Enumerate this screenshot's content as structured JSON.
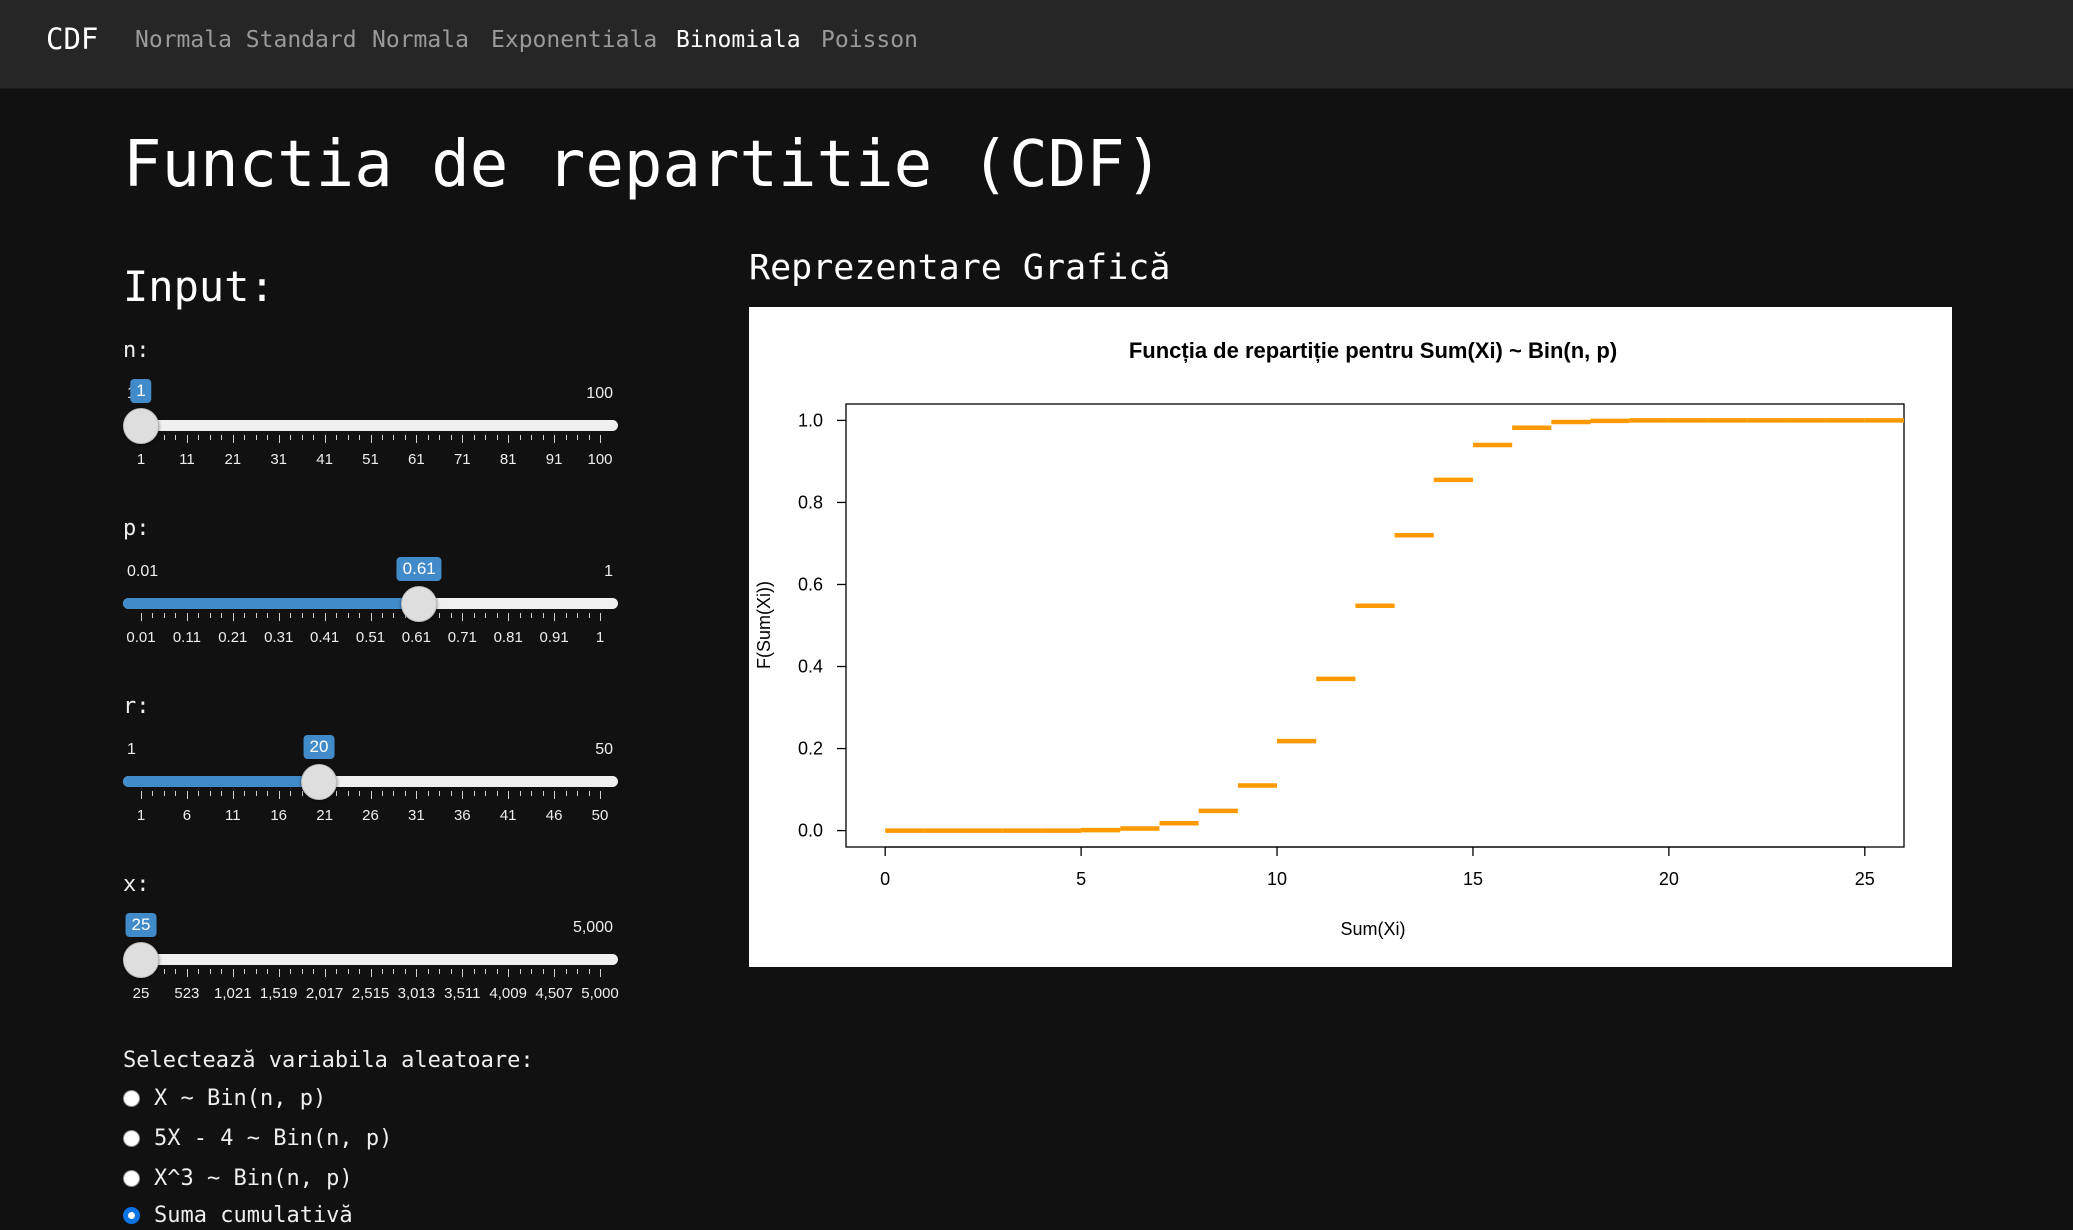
{
  "navbar": {
    "brand": "CDF",
    "items": [
      {
        "label": "Normala Standard",
        "active": false
      },
      {
        "label": "Normala",
        "active": false
      },
      {
        "label": "Exponentiala",
        "active": false
      },
      {
        "label": "Binomiala",
        "active": true
      },
      {
        "label": "Poisson",
        "active": false
      }
    ]
  },
  "page_title": "Functia de repartitie (CDF)",
  "input_heading": "Input:",
  "plot_heading": "Reprezentare Grafică",
  "sliders": {
    "n": {
      "label": "n:",
      "min": "1",
      "max": "100",
      "value": "1",
      "ticks": [
        "1",
        "11",
        "21",
        "31",
        "41",
        "51",
        "61",
        "71",
        "81",
        "91",
        "100"
      ]
    },
    "p": {
      "label": "p:",
      "min": "0.01",
      "max": "1",
      "value": "0.61",
      "ticks": [
        "0.01",
        "0.11",
        "0.21",
        "0.31",
        "0.41",
        "0.51",
        "0.61",
        "0.71",
        "0.81",
        "0.91",
        "1"
      ]
    },
    "r": {
      "label": "r:",
      "min": "1",
      "max": "50",
      "value": "20",
      "ticks": [
        "1",
        "6",
        "11",
        "16",
        "21",
        "26",
        "31",
        "36",
        "41",
        "46",
        "50"
      ]
    },
    "x": {
      "label": "x:",
      "min": "25",
      "max": "5,000",
      "value": "25",
      "ticks": [
        "25",
        "523",
        "1,021",
        "1,519",
        "2,017",
        "2,515",
        "3,013",
        "3,511",
        "4,009",
        "4,507",
        "5,000"
      ]
    }
  },
  "radio": {
    "label": "Selectează variabila aleatoare:",
    "options": [
      {
        "label": "X ~ Bin(n, p)",
        "checked": false
      },
      {
        "label": "5X - 4 ~ Bin(n, p)",
        "checked": false
      },
      {
        "label": "X^3 ~ Bin(n, p)",
        "checked": false
      },
      {
        "label": "Suma cumulativă",
        "checked": true
      }
    ]
  },
  "colors": {
    "accent": "#428bca",
    "navbar": "#262626",
    "background": "#111111",
    "series": "#ff9900"
  },
  "chart_data": {
    "type": "line",
    "title": "Funcția de repartiție pentru Sum(Xi) ~ Bin(n, p)",
    "xlabel": "Sum(Xi)",
    "ylabel": "F(Sum(Xi))",
    "xlim": [
      -1,
      26
    ],
    "ylim": [
      -0.04,
      1.04
    ],
    "xticks": [
      "0",
      "5",
      "10",
      "15",
      "20",
      "25"
    ],
    "yticks": [
      "0.0",
      "0.2",
      "0.4",
      "0.6",
      "0.8",
      "1.0"
    ],
    "grid": false,
    "series": [
      {
        "style": "step",
        "x": [
          0,
          1,
          2,
          3,
          4,
          5,
          6,
          7,
          8,
          9,
          10,
          11,
          12,
          13,
          14,
          15,
          16,
          17,
          18,
          19,
          20,
          21,
          22,
          23,
          24,
          25,
          26
        ],
        "y": [
          0,
          0,
          0,
          0,
          0,
          0.001,
          0.005,
          0.018,
          0.048,
          0.11,
          0.218,
          0.37,
          0.548,
          0.72,
          0.855,
          0.94,
          0.982,
          0.996,
          0.999,
          1,
          1,
          1,
          1,
          1,
          1,
          1,
          1
        ]
      }
    ]
  }
}
